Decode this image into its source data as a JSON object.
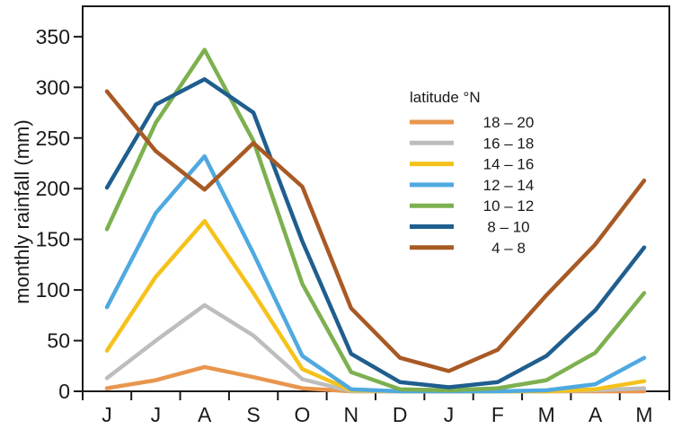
{
  "chart_data": {
    "type": "line",
    "title": "",
    "xlabel": "",
    "ylabel": "monthly rainfall (mm)",
    "categories": [
      "J",
      "J",
      "A",
      "S",
      "O",
      "N",
      "D",
      "J",
      "F",
      "M",
      "A",
      "M"
    ],
    "ylim": [
      0,
      380
    ],
    "yticks": [
      0,
      50,
      100,
      150,
      200,
      250,
      300,
      350
    ],
    "grid": false,
    "legend": {
      "title": "latitude °N",
      "placement": "top-right"
    },
    "series": [
      {
        "name": "18 – 20",
        "color": "#E8964E",
        "values": [
          3,
          11,
          24,
          14,
          3,
          0,
          0,
          0,
          0,
          0,
          0,
          0
        ]
      },
      {
        "name": "16 – 18",
        "color": "#BDBDBD",
        "values": [
          13,
          50,
          85,
          55,
          12,
          0,
          0,
          0,
          0,
          0,
          1,
          3
        ]
      },
      {
        "name": "14 – 16",
        "color": "#F5C21B",
        "values": [
          40,
          113,
          168,
          97,
          22,
          1,
          0,
          0,
          0,
          0,
          2,
          10
        ]
      },
      {
        "name": "12 – 14",
        "color": "#4FA9E0",
        "values": [
          83,
          176,
          232,
          136,
          35,
          2,
          0,
          0,
          0,
          1,
          7,
          33
        ]
      },
      {
        "name": "10 – 12",
        "color": "#7DB04F",
        "values": [
          160,
          265,
          337,
          247,
          106,
          19,
          2,
          1,
          3,
          11,
          38,
          97
        ]
      },
      {
        "name": "8 – 10",
        "color": "#1F5E8E",
        "values": [
          201,
          283,
          308,
          275,
          148,
          37,
          9,
          4,
          9,
          35,
          80,
          142
        ]
      },
      {
        "name": "4 – 8",
        "color": "#A85A24",
        "values": [
          296,
          237,
          199,
          245,
          202,
          82,
          33,
          20,
          41,
          95,
          145,
          208
        ]
      }
    ]
  }
}
